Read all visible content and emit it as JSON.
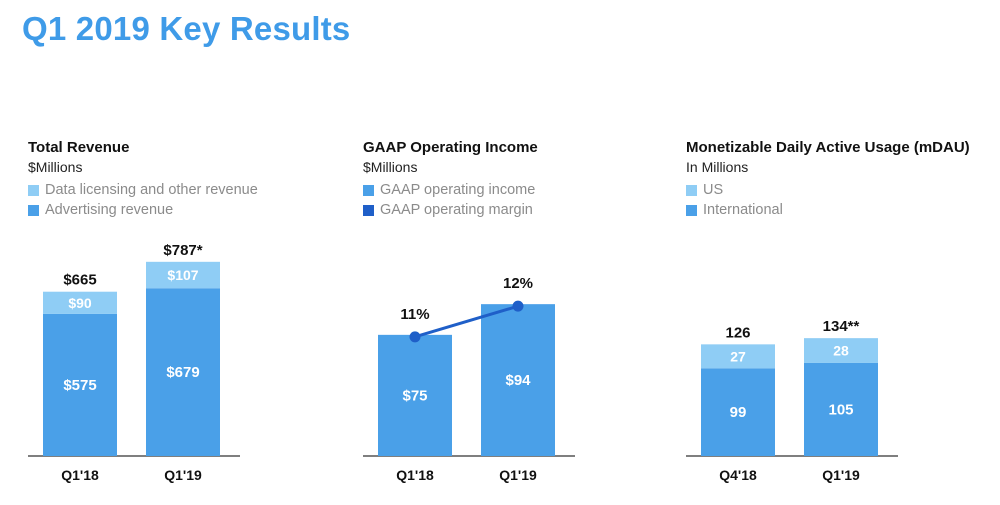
{
  "title": "Q1 2019 Key Results",
  "colors": {
    "title": "#3f9be8",
    "bar_dark": "#4aa0e8",
    "bar_light": "#8fcdf5",
    "line": "#1f5fc8",
    "axis": "#333333",
    "legend_text": "#8b8b8b"
  },
  "chart_data": [
    {
      "type": "bar",
      "stacked": true,
      "title": "Total Revenue",
      "subtitle": "$Millions",
      "categories": [
        "Q1'18",
        "Q1'19"
      ],
      "series": [
        {
          "name": "Advertising revenue",
          "values": [
            575,
            679
          ],
          "labels": [
            "$575",
            "$679"
          ],
          "color": "#4aa0e8"
        },
        {
          "name": "Data licensing and other revenue",
          "values": [
            90,
            107
          ],
          "labels": [
            "$90",
            "$107"
          ],
          "color": "#8fcdf5"
        }
      ],
      "legend": [
        "Data licensing and other revenue",
        "Advertising revenue"
      ],
      "legend_colors": [
        "#8fcdf5",
        "#4aa0e8"
      ],
      "totals": [
        "$665",
        "$787*"
      ],
      "ylim": [
        0,
        850
      ],
      "legend_position": "top-left",
      "grid": false
    },
    {
      "type": "bar",
      "title": "GAAP Operating Income",
      "subtitle": "$Millions",
      "categories": [
        "Q1'18",
        "Q1'19"
      ],
      "series": [
        {
          "name": "GAAP operating income",
          "values": [
            75,
            94
          ],
          "labels": [
            "$75",
            "$94"
          ],
          "color": "#4aa0e8"
        }
      ],
      "line_series": {
        "name": "GAAP operating margin",
        "values": [
          11,
          12
        ],
        "labels": [
          "11%",
          "12%"
        ],
        "color": "#1f5fc8"
      },
      "legend": [
        "GAAP operating income",
        "GAAP operating margin"
      ],
      "legend_colors": [
        "#4aa0e8",
        "#1f5fc8"
      ],
      "ylim": [
        0,
        130
      ],
      "legend_position": "top-left",
      "grid": false
    },
    {
      "type": "bar",
      "stacked": true,
      "title": "Monetizable Daily Active Usage (mDAU)",
      "subtitle": "In Millions",
      "categories": [
        "Q4'18",
        "Q1'19"
      ],
      "series": [
        {
          "name": "International",
          "values": [
            99,
            105
          ],
          "labels": [
            "99",
            "105"
          ],
          "color": "#4aa0e8"
        },
        {
          "name": "US",
          "values": [
            27,
            28
          ],
          "labels": [
            "27",
            "28"
          ],
          "color": "#8fcdf5"
        }
      ],
      "legend": [
        "US",
        "International"
      ],
      "legend_colors": [
        "#8fcdf5",
        "#4aa0e8"
      ],
      "totals": [
        "126",
        "134**"
      ],
      "ylim": [
        0,
        237
      ],
      "legend_position": "top-left",
      "grid": false
    }
  ]
}
